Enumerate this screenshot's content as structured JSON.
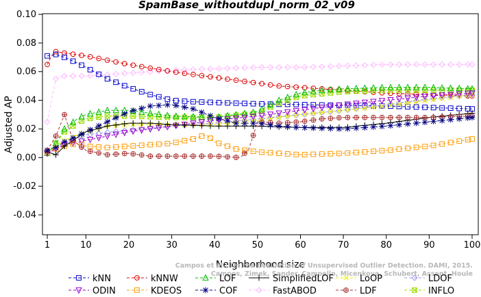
{
  "chart_data": {
    "type": "line",
    "title": "SpamBase_withoutdupl_norm_02_v09",
    "xlabel": "Neighborhood size",
    "ylabel": "Adjusted AP",
    "xlim": [
      1,
      100
    ],
    "ylim": [
      -0.05,
      0.1
    ],
    "xticks": [
      "1",
      "10",
      "20",
      "30",
      "40",
      "50",
      "60",
      "70",
      "80",
      "90",
      "100"
    ],
    "yticks": [
      "-0.04",
      "-0.02",
      "0.00",
      "0.02",
      "0.04",
      "0.06",
      "0.08",
      "0.10"
    ],
    "grid": false,
    "legend_position": "bottom",
    "series": [
      {
        "name": "kNN",
        "color": "#0000cc",
        "marker": "square",
        "dash": "4,3",
        "keypoints": [
          [
            1,
            0.071
          ],
          [
            3,
            0.072
          ],
          [
            5,
            0.07
          ],
          [
            8,
            0.066
          ],
          [
            10,
            0.063
          ],
          [
            15,
            0.055
          ],
          [
            20,
            0.049
          ],
          [
            25,
            0.044
          ],
          [
            30,
            0.04
          ],
          [
            35,
            0.039
          ],
          [
            40,
            0.0385
          ],
          [
            50,
            0.0375
          ],
          [
            60,
            0.037
          ],
          [
            70,
            0.0365
          ],
          [
            80,
            0.036
          ],
          [
            90,
            0.035
          ],
          [
            100,
            0.034
          ]
        ]
      },
      {
        "name": "kNNW",
        "color": "#dd0000",
        "marker": "circle",
        "dash": "4,3",
        "keypoints": [
          [
            1,
            0.065
          ],
          [
            2,
            0.071
          ],
          [
            3,
            0.074
          ],
          [
            5,
            0.073
          ],
          [
            10,
            0.071
          ],
          [
            20,
            0.065
          ],
          [
            30,
            0.06
          ],
          [
            40,
            0.056
          ],
          [
            50,
            0.052
          ],
          [
            55,
            0.05
          ],
          [
            60,
            0.049
          ],
          [
            70,
            0.047
          ],
          [
            80,
            0.045
          ],
          [
            90,
            0.044
          ],
          [
            100,
            0.043
          ]
        ]
      },
      {
        "name": "LOF",
        "color": "#00bb00",
        "marker": "triangle",
        "dash": "4,3",
        "keypoints": [
          [
            1,
            0.003
          ],
          [
            3,
            0.01
          ],
          [
            5,
            0.02
          ],
          [
            8,
            0.027
          ],
          [
            10,
            0.03
          ],
          [
            15,
            0.033
          ],
          [
            20,
            0.033
          ],
          [
            25,
            0.031
          ],
          [
            30,
            0.029
          ],
          [
            40,
            0.028
          ],
          [
            50,
            0.032
          ],
          [
            55,
            0.04
          ],
          [
            60,
            0.045
          ],
          [
            65,
            0.047
          ],
          [
            70,
            0.048
          ],
          [
            80,
            0.049
          ],
          [
            90,
            0.049
          ],
          [
            100,
            0.048
          ]
        ]
      },
      {
        "name": "SimplifiedLOF",
        "color": "#000000",
        "marker": "plus",
        "dash": "",
        "keypoints": [
          [
            1,
            0.004
          ],
          [
            3,
            0.002
          ],
          [
            5,
            0.008
          ],
          [
            8,
            0.014
          ],
          [
            10,
            0.018
          ],
          [
            15,
            0.022
          ],
          [
            20,
            0.024
          ],
          [
            25,
            0.024
          ],
          [
            30,
            0.023
          ],
          [
            40,
            0.022
          ],
          [
            50,
            0.022
          ],
          [
            60,
            0.021
          ],
          [
            70,
            0.021
          ],
          [
            80,
            0.024
          ],
          [
            90,
            0.028
          ],
          [
            100,
            0.031
          ]
        ]
      },
      {
        "name": "LoOP",
        "color": "#eeee00",
        "marker": "x",
        "dash": "4,3",
        "keypoints": [
          [
            1,
            0.003
          ],
          [
            5,
            0.012
          ],
          [
            10,
            0.018
          ],
          [
            15,
            0.022
          ],
          [
            20,
            0.023
          ],
          [
            30,
            0.023
          ],
          [
            40,
            0.023
          ],
          [
            50,
            0.026
          ],
          [
            60,
            0.03
          ],
          [
            70,
            0.033
          ],
          [
            80,
            0.036
          ],
          [
            90,
            0.04
          ],
          [
            100,
            0.044
          ]
        ]
      },
      {
        "name": "LDOF",
        "color": "#9999ee",
        "marker": "diamond",
        "dash": "4,3",
        "keypoints": [
          [
            1,
            0.003
          ],
          [
            5,
            0.01
          ],
          [
            10,
            0.016
          ],
          [
            20,
            0.019
          ],
          [
            30,
            0.022
          ],
          [
            40,
            0.024
          ],
          [
            50,
            0.027
          ],
          [
            60,
            0.03
          ],
          [
            70,
            0.033
          ],
          [
            80,
            0.037
          ],
          [
            90,
            0.041
          ],
          [
            100,
            0.044
          ]
        ]
      },
      {
        "name": "ODIN",
        "color": "#9900cc",
        "marker": "tridown",
        "dash": "4,3",
        "keypoints": [
          [
            1,
            0.003
          ],
          [
            5,
            0.009
          ],
          [
            10,
            0.012
          ],
          [
            20,
            0.018
          ],
          [
            30,
            0.022
          ],
          [
            40,
            0.026
          ],
          [
            50,
            0.029
          ],
          [
            60,
            0.033
          ],
          [
            70,
            0.037
          ],
          [
            80,
            0.04
          ],
          [
            90,
            0.043
          ],
          [
            100,
            0.045
          ]
        ]
      },
      {
        "name": "KDEOS",
        "color": "#ff9900",
        "marker": "square",
        "dash": "4,3",
        "keypoints": [
          [
            1,
            0.004
          ],
          [
            5,
            0.008
          ],
          [
            8,
            0.01
          ],
          [
            10,
            0.008
          ],
          [
            15,
            0.007
          ],
          [
            20,
            0.008
          ],
          [
            25,
            0.009
          ],
          [
            30,
            0.01
          ],
          [
            35,
            0.013
          ],
          [
            38,
            0.016
          ],
          [
            40,
            0.011
          ],
          [
            45,
            0.006
          ],
          [
            50,
            0.004
          ],
          [
            55,
            0.003
          ],
          [
            60,
            0.002
          ],
          [
            70,
            0.003
          ],
          [
            80,
            0.005
          ],
          [
            90,
            0.008
          ],
          [
            100,
            0.013
          ]
        ]
      },
      {
        "name": "COF",
        "color": "#000080",
        "marker": "star",
        "dash": "4,3",
        "keypoints": [
          [
            1,
            0.005
          ],
          [
            3,
            0.007
          ],
          [
            5,
            0.011
          ],
          [
            8,
            0.015
          ],
          [
            10,
            0.018
          ],
          [
            15,
            0.025
          ],
          [
            20,
            0.032
          ],
          [
            25,
            0.036
          ],
          [
            30,
            0.037
          ],
          [
            35,
            0.034
          ],
          [
            40,
            0.028
          ],
          [
            45,
            0.024
          ],
          [
            50,
            0.024
          ],
          [
            55,
            0.022
          ],
          [
            60,
            0.021
          ],
          [
            70,
            0.02
          ],
          [
            80,
            0.022
          ],
          [
            90,
            0.025
          ],
          [
            100,
            0.028
          ]
        ]
      },
      {
        "name": "FastABOD",
        "color": "#ffb8ff",
        "marker": "diamond",
        "dash": "4,3",
        "keypoints": [
          [
            1,
            0.025
          ],
          [
            2,
            0.04
          ],
          [
            3,
            0.055
          ],
          [
            5,
            0.057
          ],
          [
            10,
            0.057
          ],
          [
            20,
            0.059
          ],
          [
            30,
            0.061
          ],
          [
            40,
            0.062
          ],
          [
            50,
            0.063
          ],
          [
            60,
            0.063
          ],
          [
            70,
            0.064
          ],
          [
            80,
            0.065
          ],
          [
            90,
            0.065
          ],
          [
            100,
            0.065
          ]
        ]
      },
      {
        "name": "LDF",
        "color": "#aa3333",
        "marker": "circleplus",
        "dash": "4,3",
        "keypoints": [
          [
            1,
            0.005
          ],
          [
            3,
            0.015
          ],
          [
            5,
            0.03
          ],
          [
            7,
            0.012
          ],
          [
            10,
            0.005
          ],
          [
            15,
            0.002
          ],
          [
            20,
            0.003
          ],
          [
            25,
            0.001
          ],
          [
            30,
            0.001
          ],
          [
            40,
            0.001
          ],
          [
            46,
            0.0
          ],
          [
            48,
            0.006
          ],
          [
            50,
            0.025
          ],
          [
            55,
            0.024
          ],
          [
            60,
            0.025
          ],
          [
            65,
            0.027
          ],
          [
            70,
            0.028
          ],
          [
            80,
            0.028
          ],
          [
            90,
            0.028
          ],
          [
            100,
            0.029
          ]
        ]
      },
      {
        "name": "INFLO",
        "color": "#99dd00",
        "marker": "asterisk",
        "dash": "4,3",
        "keypoints": [
          [
            1,
            0.003
          ],
          [
            3,
            0.01
          ],
          [
            5,
            0.018
          ],
          [
            8,
            0.024
          ],
          [
            10,
            0.027
          ],
          [
            15,
            0.029
          ],
          [
            20,
            0.029
          ],
          [
            30,
            0.028
          ],
          [
            40,
            0.028
          ],
          [
            50,
            0.031
          ],
          [
            55,
            0.038
          ],
          [
            60,
            0.043
          ],
          [
            70,
            0.046
          ],
          [
            80,
            0.047
          ],
          [
            90,
            0.047
          ],
          [
            100,
            0.047
          ]
        ]
      }
    ]
  },
  "watermark_lines": [
    "Campos et al.: On the Evaluation of Unsupervised Outlier Detection. DAMI, 2015.",
    "Campos, Zimek, Sander, Campello, Micenkova, Schubert, Assent, Houle"
  ]
}
